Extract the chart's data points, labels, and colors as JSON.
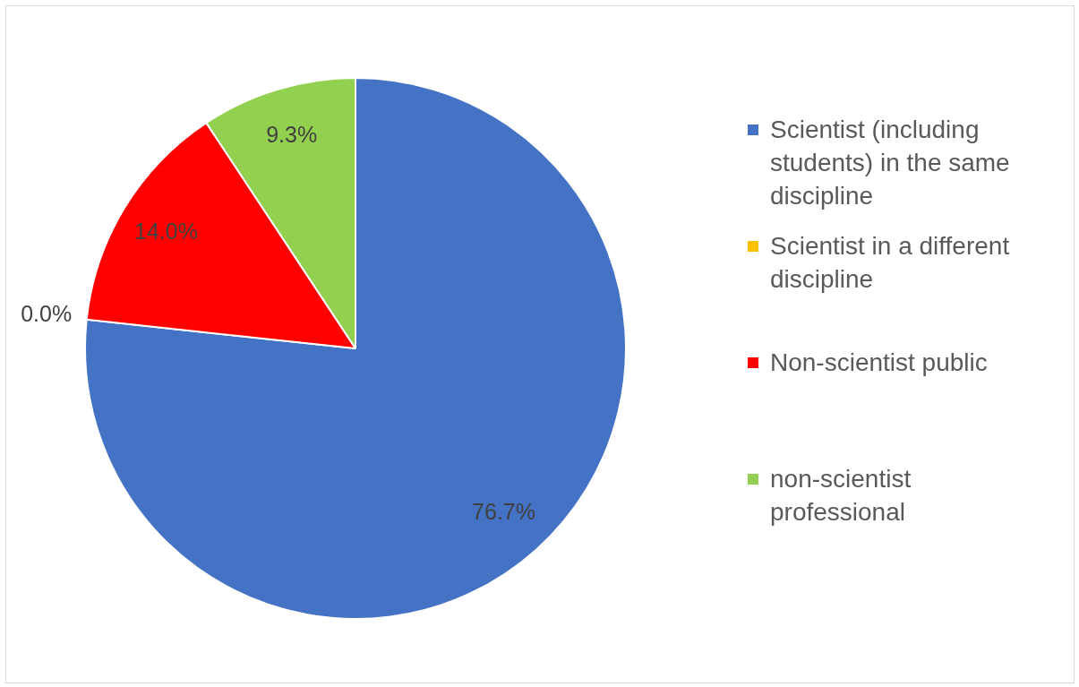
{
  "chart_data": {
    "type": "pie",
    "categories": [
      "Scientist (including students) in the same discipline",
      "Scientist in a different discipline",
      "Non-scientist public",
      "non-scientist professional"
    ],
    "values": [
      76.7,
      0.0,
      14.0,
      9.3
    ],
    "colors": [
      "#4472c4",
      "#ffc000",
      "#ff0000",
      "#92d050"
    ],
    "value_labels": [
      "76.7%",
      "0.0%",
      "14.0%",
      "9.3%"
    ],
    "legend": "right"
  }
}
